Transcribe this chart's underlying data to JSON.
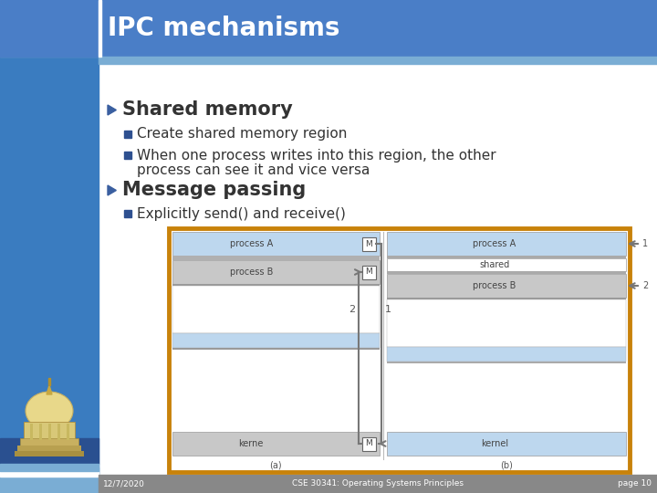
{
  "title": "IPC mechanisms",
  "title_bg": "#4A7EC7",
  "title_color": "#FFFFFF",
  "slide_bg": "#FFFFFF",
  "left_bar_top_color": "#7AADD4",
  "left_bar_main_color": "#3A7CC0",
  "header_strip_color": "#7AADD4",
  "bullet1_head": "Shared memory",
  "bullet1_sub1": "Create shared memory region",
  "bullet1_sub2a": "When one process writes into this region, the other",
  "bullet1_sub2b": "process can see it and vice versa",
  "bullet2_head": "Message passing",
  "bullet2_sub1": "Explicitly send() and receive()",
  "footer_bg": "#888888",
  "footer_left": "12/7/2020",
  "footer_center": "CSE 30341: Operating Systems Principles",
  "footer_right": "page 10",
  "footer_color": "#FFFFFF",
  "diagram_border_color": "#C8820A",
  "diagram_bg": "#FFFFFF",
  "light_blue": "#BDD7EE",
  "gray_row": "#AAAAAA",
  "bullet_color": "#3A5FA0",
  "sub_bullet_color": "#2E5090",
  "text_dark": "#333333",
  "arrow_color": "#777777"
}
